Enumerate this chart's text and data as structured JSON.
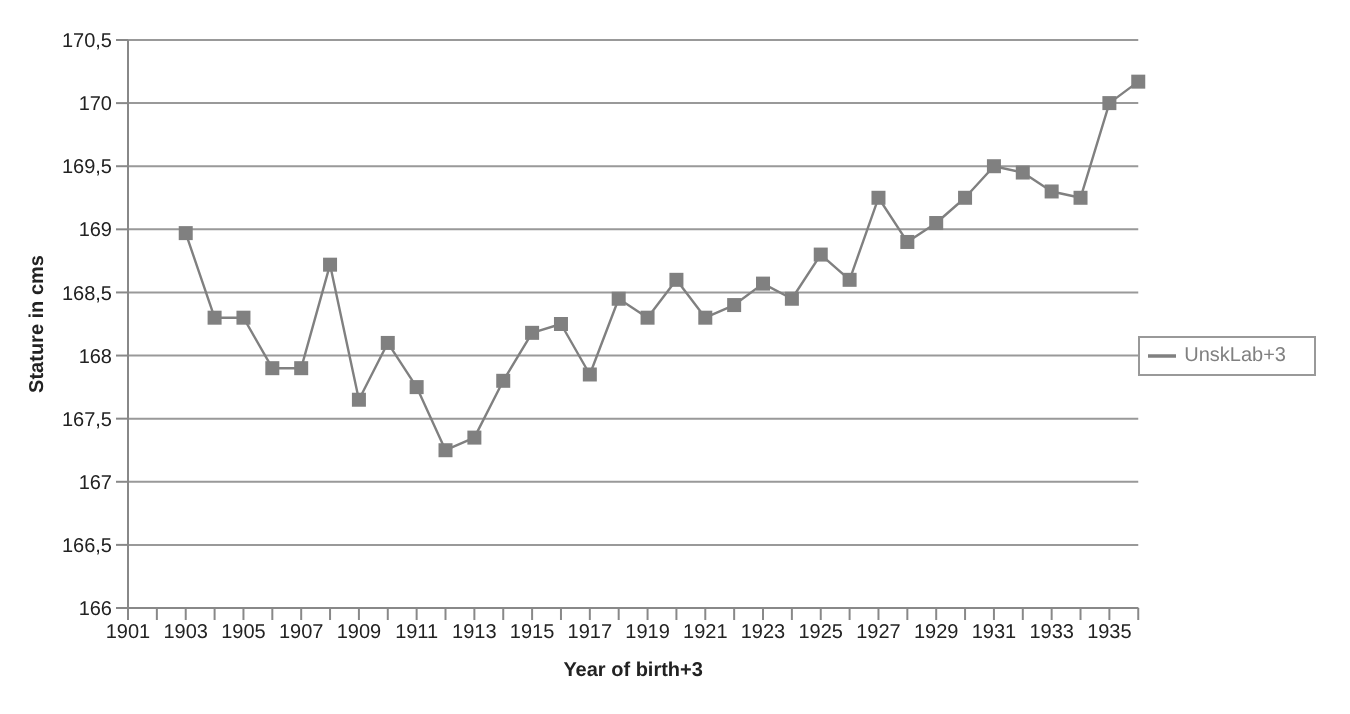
{
  "chart_data": {
    "type": "line",
    "xlabel": "Year of birth+3",
    "ylabel": "Stature in cms",
    "categories": [
      "1901",
      null,
      "1903",
      null,
      "1905",
      null,
      "1907",
      null,
      "1909",
      null,
      "1911",
      null,
      "1913",
      null,
      "1915",
      null,
      "1917",
      null,
      "1919",
      null,
      "1921",
      null,
      "1923",
      null,
      "1925",
      null,
      "1927",
      null,
      "1929",
      null,
      "1931",
      null,
      "1933",
      null,
      "1935",
      null
    ],
    "series": [
      {
        "name": "UnskLab+3",
        "color": "#808080",
        "values": [
          null,
          null,
          168.97,
          168.3,
          168.3,
          167.9,
          167.9,
          168.72,
          167.65,
          168.1,
          167.75,
          167.25,
          167.35,
          167.8,
          168.18,
          168.25,
          167.85,
          168.45,
          168.3,
          168.6,
          168.3,
          168.4,
          168.57,
          168.45,
          168.8,
          168.6,
          169.25,
          168.9,
          169.05,
          169.25,
          169.5,
          169.45,
          169.3,
          169.25,
          170.0,
          170.17
        ]
      }
    ],
    "ylim": [
      166,
      170.5
    ],
    "yticks": [
      166,
      {
        "value": 166.5,
        "label": "166,5"
      },
      167,
      {
        "value": 167.5,
        "label": "167,5"
      },
      168,
      {
        "value": 168.5,
        "label": "168,5"
      },
      169,
      {
        "value": 169.5,
        "label": "169,5"
      },
      170,
      {
        "value": 170.5,
        "label": "170,5"
      }
    ],
    "grid": "y",
    "legend": "right",
    "marker": "square",
    "line_style": "solid"
  }
}
